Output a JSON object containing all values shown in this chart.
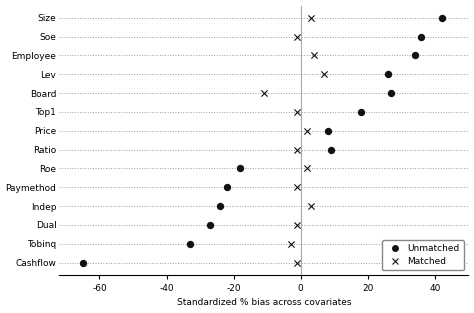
{
  "covariates": [
    "Size",
    "Soe",
    "Employee",
    "Lev",
    "Board",
    "Top1",
    "Price",
    "Ratio",
    "Roe",
    "Paymethod",
    "Indep",
    "Dual",
    "Tobinq",
    "Cashflow"
  ],
  "unmatched": [
    42,
    36,
    34,
    26,
    27,
    18,
    8,
    9,
    -18,
    -22,
    -24,
    -27,
    -33,
    -65
  ],
  "matched": [
    3,
    -1,
    4,
    7,
    -11,
    -1,
    2,
    -1,
    2,
    -1,
    3,
    -1,
    -3,
    -1
  ],
  "xlabel": "Standardized % bias across covariates",
  "legend_unmatched": "Unmatched",
  "legend_matched": "Matched",
  "xlim": [
    -72,
    50
  ],
  "xticks": [
    -60,
    -40,
    -20,
    0,
    20,
    40
  ],
  "dot_color": "#111111",
  "dot_size": 28,
  "cross_size": 20,
  "dotted_color": "#999999",
  "background_color": "#ffffff"
}
